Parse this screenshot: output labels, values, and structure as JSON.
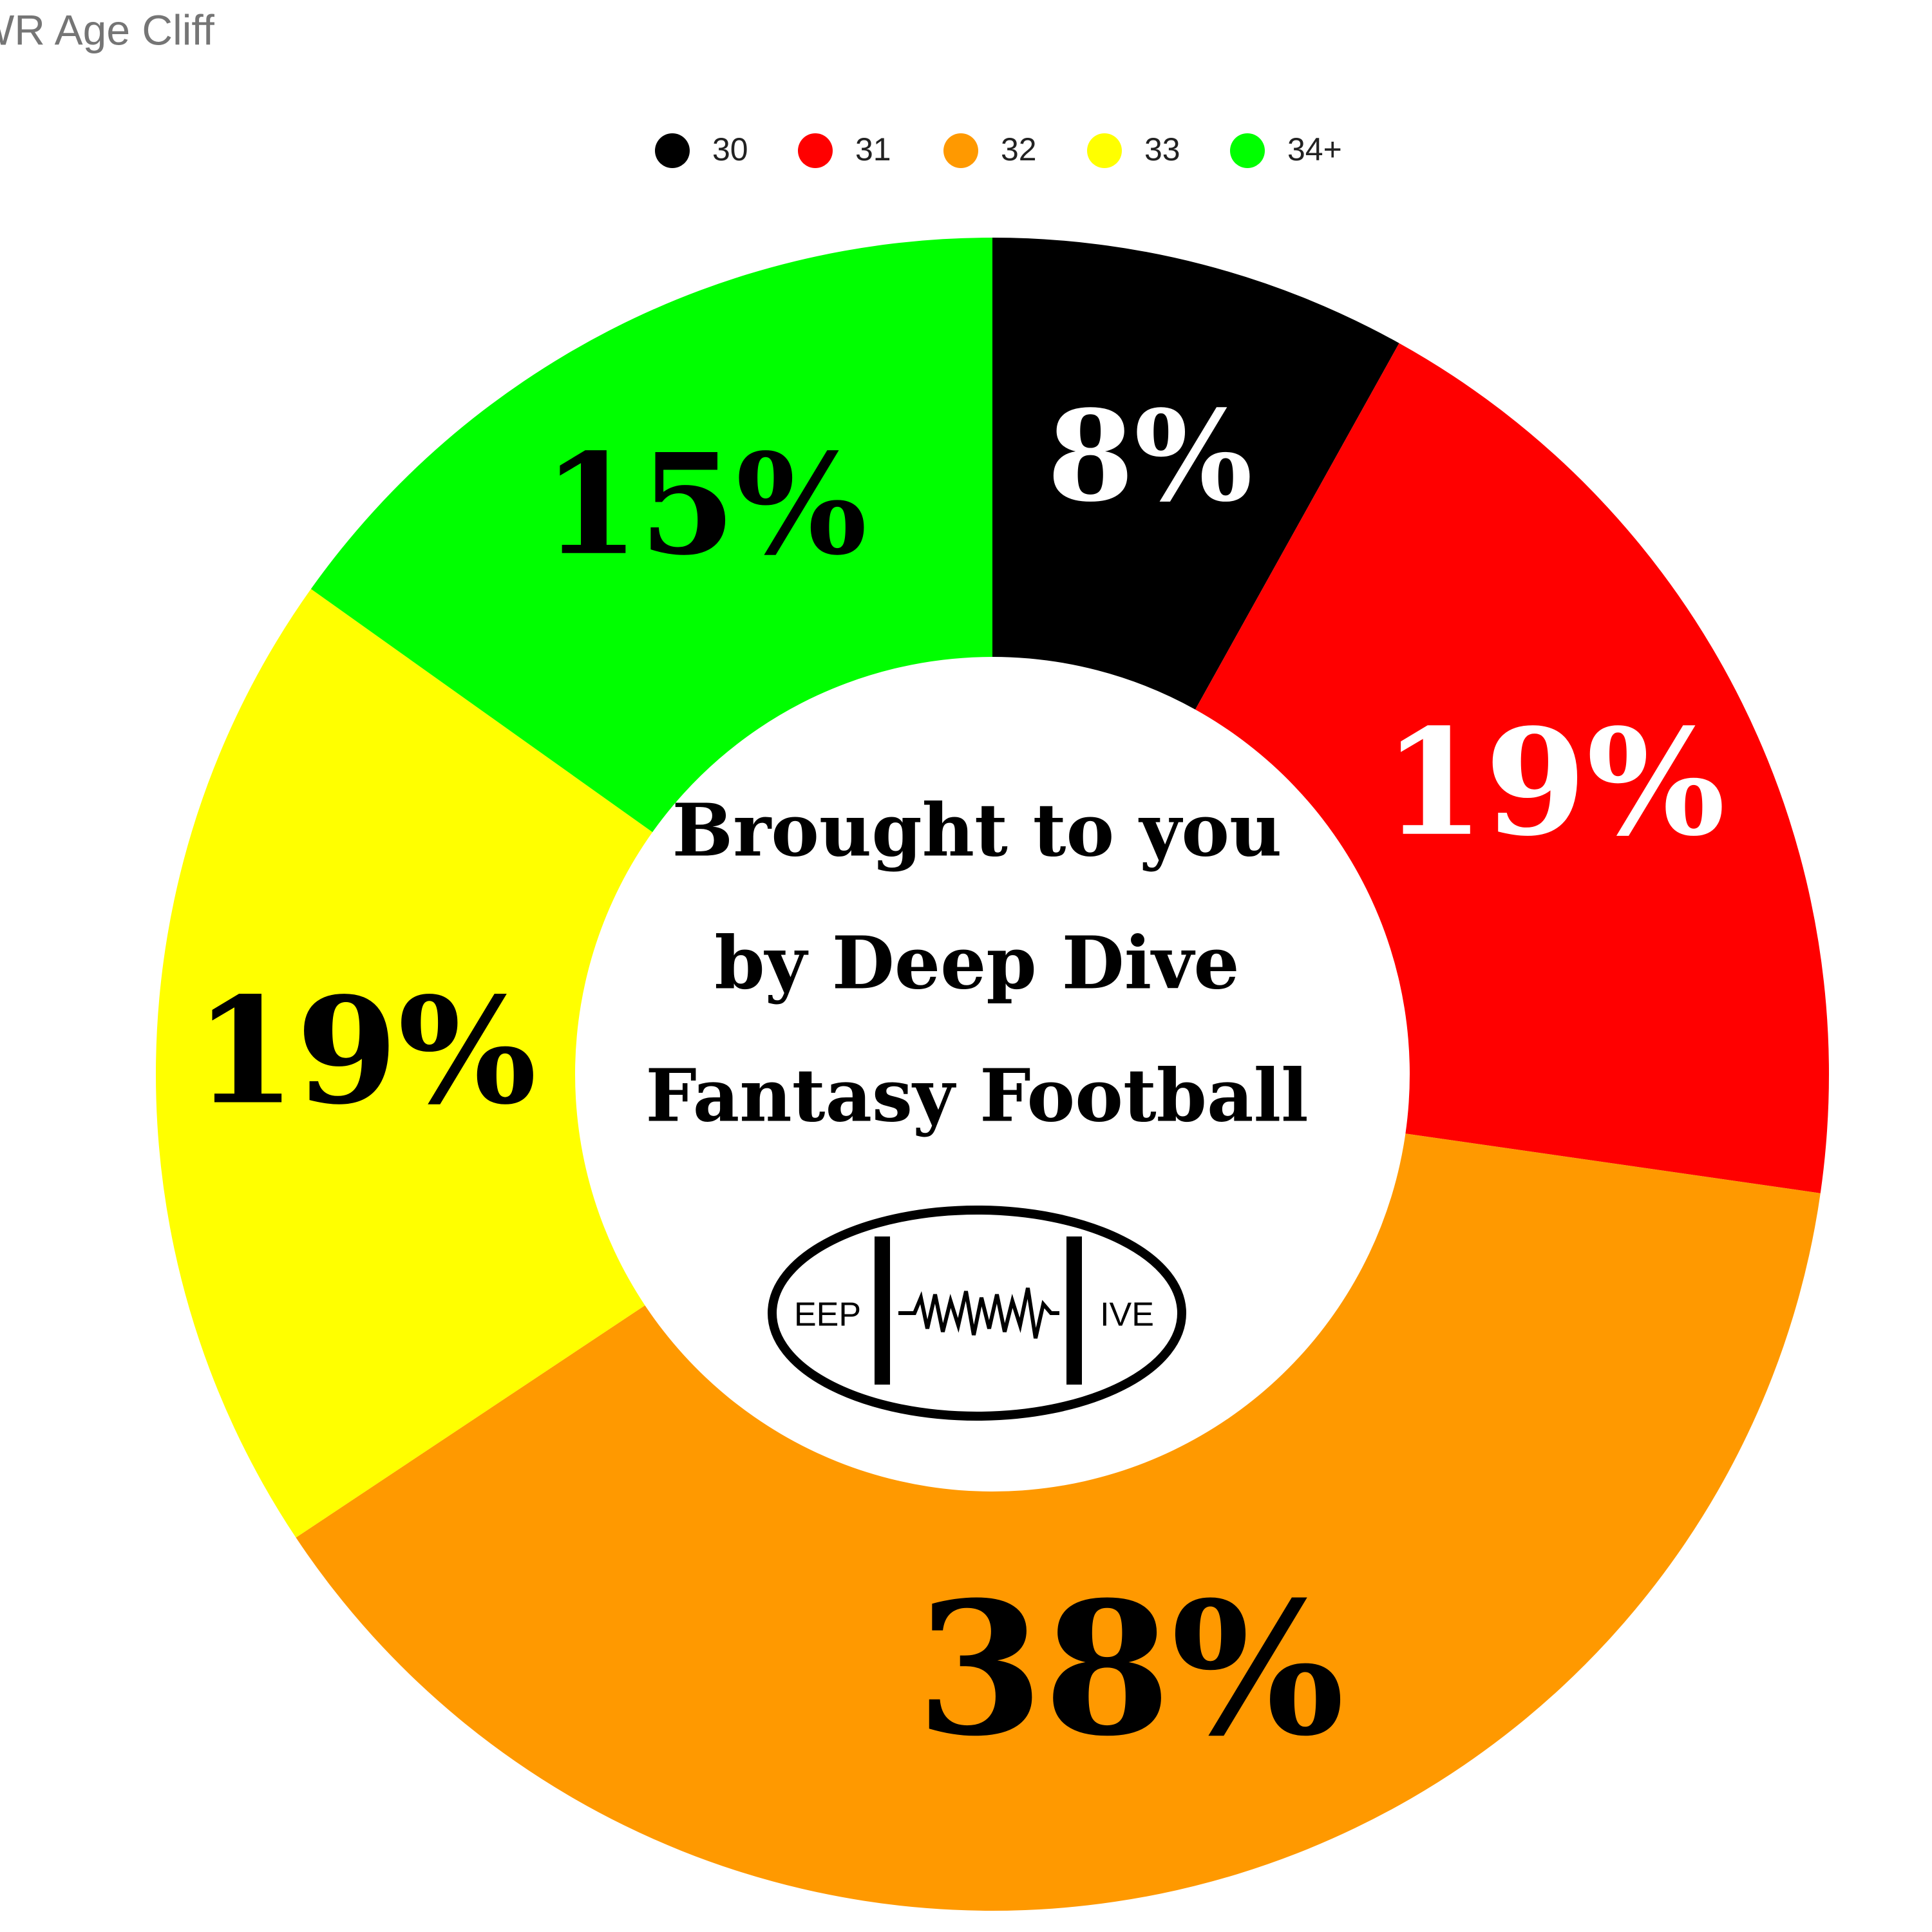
{
  "chart_data": {
    "type": "donut",
    "title": "WR Age Cliff",
    "categories": [
      "30",
      "31",
      "32",
      "33",
      "34+"
    ],
    "values": [
      8,
      19,
      38,
      19,
      15
    ],
    "value_labels": [
      "8%",
      "19%",
      "38%",
      "19%",
      "15%"
    ],
    "colors": [
      "#000000",
      "#ff0000",
      "#ff9900",
      "#ffff00",
      "#00ff00"
    ],
    "center_text": [
      "Brought to you",
      "by Deep Dive",
      "Fantasy Football"
    ],
    "logo_text": [
      "EEP",
      "IVE"
    ],
    "legend": "top"
  }
}
